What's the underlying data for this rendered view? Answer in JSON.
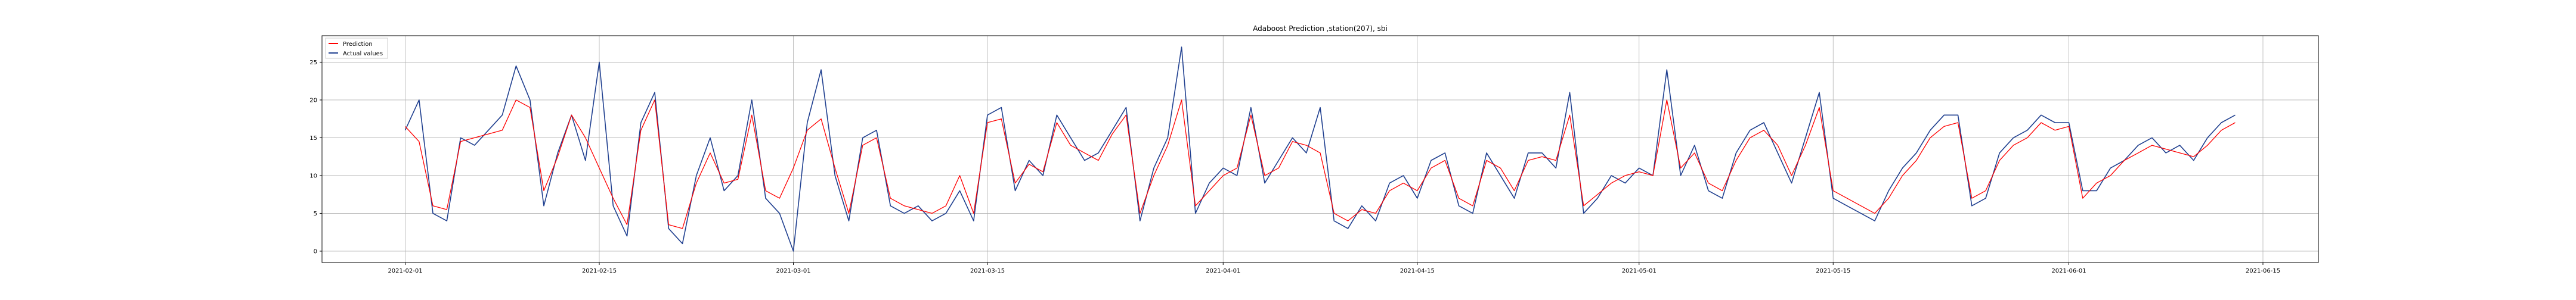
{
  "chart_data": {
    "type": "line",
    "title": "Adaboost Prediction ,station(207), sbi",
    "xlabel": "",
    "ylabel": "",
    "xlim": [
      "2021-01-26",
      "2021-06-19"
    ],
    "ylim": [
      -1.5,
      28.5
    ],
    "x_ticks": [
      "2021-02-01",
      "2021-02-15",
      "2021-03-01",
      "2021-03-15",
      "2021-04-01",
      "2021-04-15",
      "2021-05-01",
      "2021-05-15",
      "2021-06-01",
      "2021-06-15"
    ],
    "y_ticks": [
      0,
      5,
      10,
      15,
      20,
      25
    ],
    "grid": true,
    "legend_position": "top-left",
    "colors": {
      "prediction": "#ff0000",
      "actual": "#1f3f8f"
    },
    "series": [
      {
        "name": "Prediction",
        "points": [
          [
            "2021-02-01",
            16.5
          ],
          [
            "2021-02-02",
            14.5
          ],
          [
            "2021-02-03",
            6.0
          ],
          [
            "2021-02-04",
            5.5
          ],
          [
            "2021-02-05",
            14.5
          ],
          [
            "2021-02-06",
            15.0
          ],
          [
            "2021-02-07",
            15.5
          ],
          [
            "2021-02-08",
            16.0
          ],
          [
            "2021-02-09",
            20.0
          ],
          [
            "2021-02-10",
            19.0
          ],
          [
            "2021-02-11",
            8.0
          ],
          [
            "2021-02-12",
            12.5
          ],
          [
            "2021-02-13",
            18.0
          ],
          [
            "2021-02-14",
            15.0
          ],
          [
            "2021-02-15",
            11.0
          ],
          [
            "2021-02-16",
            7.0
          ],
          [
            "2021-02-17",
            3.5
          ],
          [
            "2021-02-18",
            16.0
          ],
          [
            "2021-02-19",
            20.0
          ],
          [
            "2021-02-20",
            3.5
          ],
          [
            "2021-02-21",
            3.0
          ],
          [
            "2021-02-22",
            9.0
          ],
          [
            "2021-02-23",
            13.0
          ],
          [
            "2021-02-24",
            9.0
          ],
          [
            "2021-02-25",
            9.5
          ],
          [
            "2021-02-26",
            18.0
          ],
          [
            "2021-02-27",
            8.0
          ],
          [
            "2021-02-28",
            7.0
          ],
          [
            "2021-03-01",
            11.0
          ],
          [
            "2021-03-02",
            16.0
          ],
          [
            "2021-03-03",
            17.5
          ],
          [
            "2021-03-04",
            11.0
          ],
          [
            "2021-03-05",
            5.0
          ],
          [
            "2021-03-06",
            14.0
          ],
          [
            "2021-03-07",
            15.0
          ],
          [
            "2021-03-08",
            7.0
          ],
          [
            "2021-03-09",
            6.0
          ],
          [
            "2021-03-10",
            5.5
          ],
          [
            "2021-03-11",
            5.0
          ],
          [
            "2021-03-12",
            6.0
          ],
          [
            "2021-03-13",
            10.0
          ],
          [
            "2021-03-14",
            5.0
          ],
          [
            "2021-03-15",
            17.0
          ],
          [
            "2021-03-16",
            17.5
          ],
          [
            "2021-03-17",
            9.0
          ],
          [
            "2021-03-18",
            11.5
          ],
          [
            "2021-03-19",
            10.5
          ],
          [
            "2021-03-20",
            17.0
          ],
          [
            "2021-03-21",
            14.0
          ],
          [
            "2021-03-22",
            13.0
          ],
          [
            "2021-03-23",
            12.0
          ],
          [
            "2021-03-24",
            15.5
          ],
          [
            "2021-03-25",
            18.0
          ],
          [
            "2021-03-26",
            5.0
          ],
          [
            "2021-03-27",
            10.0
          ],
          [
            "2021-03-28",
            14.0
          ],
          [
            "2021-03-29",
            20.0
          ],
          [
            "2021-03-30",
            6.0
          ],
          [
            "2021-03-31",
            8.0
          ],
          [
            "2021-04-01",
            10.0
          ],
          [
            "2021-04-02",
            11.0
          ],
          [
            "2021-04-03",
            18.0
          ],
          [
            "2021-04-04",
            10.0
          ],
          [
            "2021-04-05",
            11.0
          ],
          [
            "2021-04-06",
            14.5
          ],
          [
            "2021-04-07",
            14.0
          ],
          [
            "2021-04-08",
            13.0
          ],
          [
            "2021-04-09",
            5.0
          ],
          [
            "2021-04-10",
            4.0
          ],
          [
            "2021-04-11",
            5.5
          ],
          [
            "2021-04-12",
            5.0
          ],
          [
            "2021-04-13",
            8.0
          ],
          [
            "2021-04-14",
            9.0
          ],
          [
            "2021-04-15",
            8.0
          ],
          [
            "2021-04-16",
            11.0
          ],
          [
            "2021-04-17",
            12.0
          ],
          [
            "2021-04-18",
            7.0
          ],
          [
            "2021-04-19",
            6.0
          ],
          [
            "2021-04-20",
            12.0
          ],
          [
            "2021-04-21",
            11.0
          ],
          [
            "2021-04-22",
            8.0
          ],
          [
            "2021-04-23",
            12.0
          ],
          [
            "2021-04-24",
            12.5
          ],
          [
            "2021-04-25",
            12.0
          ],
          [
            "2021-04-26",
            18.0
          ],
          [
            "2021-04-27",
            6.0
          ],
          [
            "2021-04-28",
            7.5
          ],
          [
            "2021-04-29",
            9.0
          ],
          [
            "2021-04-30",
            10.0
          ],
          [
            "2021-05-01",
            10.5
          ],
          [
            "2021-05-02",
            10.0
          ],
          [
            "2021-05-03",
            20.0
          ],
          [
            "2021-05-04",
            11.0
          ],
          [
            "2021-05-05",
            13.0
          ],
          [
            "2021-05-06",
            9.0
          ],
          [
            "2021-05-07",
            8.0
          ],
          [
            "2021-05-08",
            12.0
          ],
          [
            "2021-05-09",
            15.0
          ],
          [
            "2021-05-10",
            16.0
          ],
          [
            "2021-05-11",
            14.0
          ],
          [
            "2021-05-12",
            10.0
          ],
          [
            "2021-05-13",
            14.0
          ],
          [
            "2021-05-14",
            19.0
          ],
          [
            "2021-05-15",
            8.0
          ],
          [
            "2021-05-16",
            7.0
          ],
          [
            "2021-05-17",
            6.0
          ],
          [
            "2021-05-18",
            5.0
          ],
          [
            "2021-05-19",
            7.0
          ],
          [
            "2021-05-20",
            10.0
          ],
          [
            "2021-05-21",
            12.0
          ],
          [
            "2021-05-22",
            15.0
          ],
          [
            "2021-05-23",
            16.5
          ],
          [
            "2021-05-24",
            17.0
          ],
          [
            "2021-05-25",
            7.0
          ],
          [
            "2021-05-26",
            8.0
          ],
          [
            "2021-05-27",
            12.0
          ],
          [
            "2021-05-28",
            14.0
          ],
          [
            "2021-05-29",
            15.0
          ],
          [
            "2021-05-30",
            17.0
          ],
          [
            "2021-05-31",
            16.0
          ],
          [
            "2021-06-01",
            16.5
          ],
          [
            "2021-06-02",
            7.0
          ],
          [
            "2021-06-03",
            9.0
          ],
          [
            "2021-06-04",
            10.0
          ],
          [
            "2021-06-05",
            12.0
          ],
          [
            "2021-06-06",
            13.0
          ],
          [
            "2021-06-07",
            14.0
          ],
          [
            "2021-06-08",
            13.5
          ],
          [
            "2021-06-09",
            13.0
          ],
          [
            "2021-06-10",
            12.5
          ],
          [
            "2021-06-11",
            14.0
          ],
          [
            "2021-06-12",
            16.0
          ],
          [
            "2021-06-13",
            17.0
          ]
        ]
      },
      {
        "name": "Actual values",
        "points": [
          [
            "2021-02-01",
            16.0
          ],
          [
            "2021-02-02",
            20.0
          ],
          [
            "2021-02-03",
            5.0
          ],
          [
            "2021-02-04",
            4.0
          ],
          [
            "2021-02-05",
            15.0
          ],
          [
            "2021-02-06",
            14.0
          ],
          [
            "2021-02-07",
            16.0
          ],
          [
            "2021-02-08",
            18.0
          ],
          [
            "2021-02-09",
            24.5
          ],
          [
            "2021-02-10",
            20.0
          ],
          [
            "2021-02-11",
            6.0
          ],
          [
            "2021-02-12",
            13.0
          ],
          [
            "2021-02-13",
            18.0
          ],
          [
            "2021-02-14",
            12.0
          ],
          [
            "2021-02-15",
            25.0
          ],
          [
            "2021-02-16",
            6.0
          ],
          [
            "2021-02-17",
            2.0
          ],
          [
            "2021-02-18",
            17.0
          ],
          [
            "2021-02-19",
            21.0
          ],
          [
            "2021-02-20",
            3.0
          ],
          [
            "2021-02-21",
            1.0
          ],
          [
            "2021-02-22",
            10.0
          ],
          [
            "2021-02-23",
            15.0
          ],
          [
            "2021-02-24",
            8.0
          ],
          [
            "2021-02-25",
            10.0
          ],
          [
            "2021-02-26",
            20.0
          ],
          [
            "2021-02-27",
            7.0
          ],
          [
            "2021-02-28",
            5.0
          ],
          [
            "2021-03-01",
            0.0
          ],
          [
            "2021-03-02",
            17.0
          ],
          [
            "2021-03-03",
            24.0
          ],
          [
            "2021-03-04",
            10.0
          ],
          [
            "2021-03-05",
            4.0
          ],
          [
            "2021-03-06",
            15.0
          ],
          [
            "2021-03-07",
            16.0
          ],
          [
            "2021-03-08",
            6.0
          ],
          [
            "2021-03-09",
            5.0
          ],
          [
            "2021-03-10",
            6.0
          ],
          [
            "2021-03-11",
            4.0
          ],
          [
            "2021-03-12",
            5.0
          ],
          [
            "2021-03-13",
            8.0
          ],
          [
            "2021-03-14",
            4.0
          ],
          [
            "2021-03-15",
            18.0
          ],
          [
            "2021-03-16",
            19.0
          ],
          [
            "2021-03-17",
            8.0
          ],
          [
            "2021-03-18",
            12.0
          ],
          [
            "2021-03-19",
            10.0
          ],
          [
            "2021-03-20",
            18.0
          ],
          [
            "2021-03-21",
            15.0
          ],
          [
            "2021-03-22",
            12.0
          ],
          [
            "2021-03-23",
            13.0
          ],
          [
            "2021-03-24",
            16.0
          ],
          [
            "2021-03-25",
            19.0
          ],
          [
            "2021-03-26",
            4.0
          ],
          [
            "2021-03-27",
            11.0
          ],
          [
            "2021-03-28",
            15.0
          ],
          [
            "2021-03-29",
            27.0
          ],
          [
            "2021-03-30",
            5.0
          ],
          [
            "2021-03-31",
            9.0
          ],
          [
            "2021-04-01",
            11.0
          ],
          [
            "2021-04-02",
            10.0
          ],
          [
            "2021-04-03",
            19.0
          ],
          [
            "2021-04-04",
            9.0
          ],
          [
            "2021-04-05",
            12.0
          ],
          [
            "2021-04-06",
            15.0
          ],
          [
            "2021-04-07",
            13.0
          ],
          [
            "2021-04-08",
            19.0
          ],
          [
            "2021-04-09",
            4.0
          ],
          [
            "2021-04-10",
            3.0
          ],
          [
            "2021-04-11",
            6.0
          ],
          [
            "2021-04-12",
            4.0
          ],
          [
            "2021-04-13",
            9.0
          ],
          [
            "2021-04-14",
            10.0
          ],
          [
            "2021-04-15",
            7.0
          ],
          [
            "2021-04-16",
            12.0
          ],
          [
            "2021-04-17",
            13.0
          ],
          [
            "2021-04-18",
            6.0
          ],
          [
            "2021-04-19",
            5.0
          ],
          [
            "2021-04-20",
            13.0
          ],
          [
            "2021-04-21",
            10.0
          ],
          [
            "2021-04-22",
            7.0
          ],
          [
            "2021-04-23",
            13.0
          ],
          [
            "2021-04-24",
            13.0
          ],
          [
            "2021-04-25",
            11.0
          ],
          [
            "2021-04-26",
            21.0
          ],
          [
            "2021-04-27",
            5.0
          ],
          [
            "2021-04-28",
            7.0
          ],
          [
            "2021-04-29",
            10.0
          ],
          [
            "2021-04-30",
            9.0
          ],
          [
            "2021-05-01",
            11.0
          ],
          [
            "2021-05-02",
            10.0
          ],
          [
            "2021-05-03",
            24.0
          ],
          [
            "2021-05-04",
            10.0
          ],
          [
            "2021-05-05",
            14.0
          ],
          [
            "2021-05-06",
            8.0
          ],
          [
            "2021-05-07",
            7.0
          ],
          [
            "2021-05-08",
            13.0
          ],
          [
            "2021-05-09",
            16.0
          ],
          [
            "2021-05-10",
            17.0
          ],
          [
            "2021-05-11",
            13.0
          ],
          [
            "2021-05-12",
            9.0
          ],
          [
            "2021-05-13",
            15.0
          ],
          [
            "2021-05-14",
            21.0
          ],
          [
            "2021-05-15",
            7.0
          ],
          [
            "2021-05-16",
            6.0
          ],
          [
            "2021-05-17",
            5.0
          ],
          [
            "2021-05-18",
            4.0
          ],
          [
            "2021-05-19",
            8.0
          ],
          [
            "2021-05-20",
            11.0
          ],
          [
            "2021-05-21",
            13.0
          ],
          [
            "2021-05-22",
            16.0
          ],
          [
            "2021-05-23",
            18.0
          ],
          [
            "2021-05-24",
            18.0
          ],
          [
            "2021-05-25",
            6.0
          ],
          [
            "2021-05-26",
            7.0
          ],
          [
            "2021-05-27",
            13.0
          ],
          [
            "2021-05-28",
            15.0
          ],
          [
            "2021-05-29",
            16.0
          ],
          [
            "2021-05-30",
            18.0
          ],
          [
            "2021-05-31",
            17.0
          ],
          [
            "2021-06-01",
            17.0
          ],
          [
            "2021-06-02",
            8.0
          ],
          [
            "2021-06-03",
            8.0
          ],
          [
            "2021-06-04",
            11.0
          ],
          [
            "2021-06-05",
            12.0
          ],
          [
            "2021-06-06",
            14.0
          ],
          [
            "2021-06-07",
            15.0
          ],
          [
            "2021-06-08",
            13.0
          ],
          [
            "2021-06-09",
            14.0
          ],
          [
            "2021-06-10",
            12.0
          ],
          [
            "2021-06-11",
            15.0
          ],
          [
            "2021-06-12",
            17.0
          ],
          [
            "2021-06-13",
            18.0
          ]
        ]
      }
    ]
  }
}
